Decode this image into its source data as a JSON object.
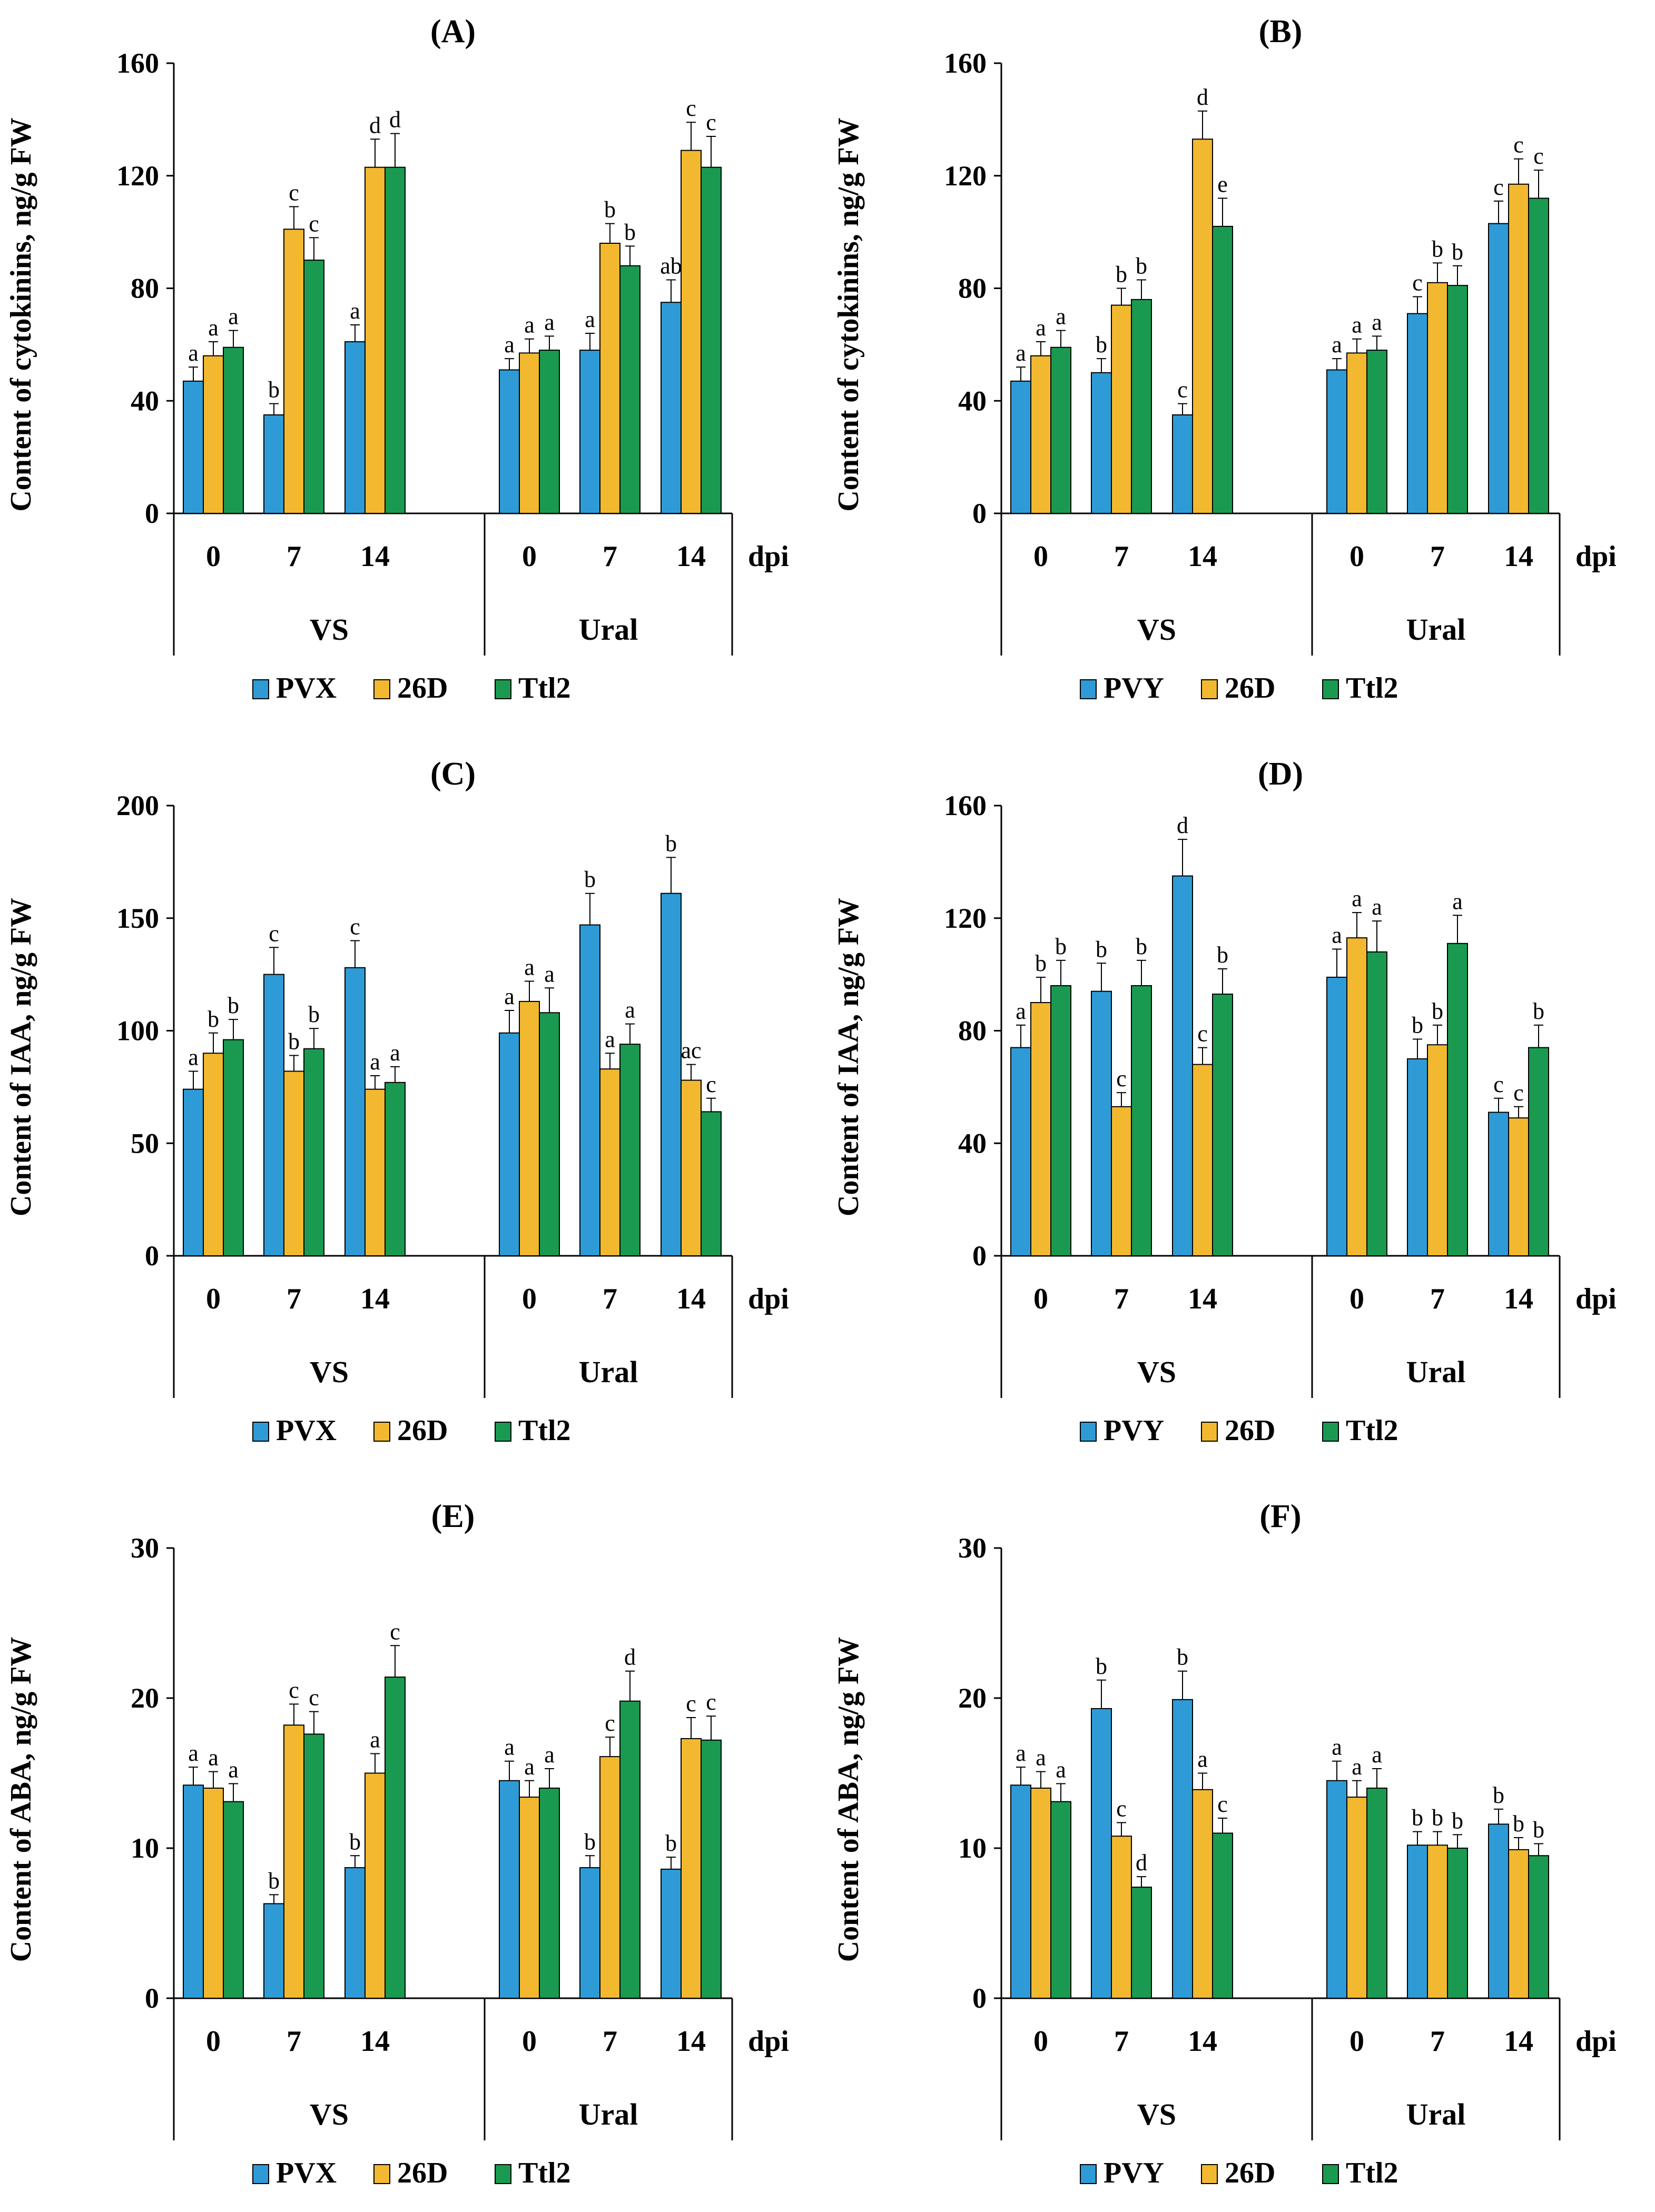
{
  "figure": {
    "xgroups": [
      {
        "label": "VS",
        "days": [
          "0",
          "7",
          "14"
        ]
      },
      {
        "label": "Ural",
        "days": [
          "0",
          "7",
          "14"
        ]
      }
    ],
    "x_unit": "dpi"
  },
  "chart_data": [
    {
      "panel": "(A)",
      "type": "bar",
      "ylabel": "Content of cytokinins,  ng/g FW",
      "ylim": [
        0,
        160
      ],
      "yticks": [
        0,
        40,
        80,
        120,
        160
      ],
      "categories": [
        "VS 0",
        "VS 7",
        "VS 14",
        "Ural 0",
        "Ural 7",
        "Ural 14"
      ],
      "series": [
        {
          "name": "PVX",
          "color": "#2e9bd6",
          "values": [
            47,
            35,
            61,
            51,
            58,
            75
          ],
          "errors": [
            5,
            4,
            6,
            4,
            6,
            8
          ],
          "letters": [
            "a",
            "b",
            "a",
            "a",
            "a",
            "ab"
          ]
        },
        {
          "name": "26D",
          "color": "#f2b830",
          "values": [
            56,
            101,
            123,
            57,
            96,
            129
          ],
          "errors": [
            5,
            8,
            10,
            5,
            7,
            10
          ],
          "letters": [
            "a",
            "c",
            "d",
            "a",
            "b",
            "c"
          ]
        },
        {
          "name": "Ttl2",
          "color": "#1a9a50",
          "values": [
            59,
            90,
            123,
            58,
            88,
            123
          ],
          "errors": [
            6,
            8,
            12,
            5,
            7,
            11
          ],
          "letters": [
            "a",
            "c",
            "d",
            "a",
            "b",
            "c"
          ]
        }
      ]
    },
    {
      "panel": "(B)",
      "type": "bar",
      "ylabel": "Content of cytokinins,  ng/g FW",
      "ylim": [
        0,
        160
      ],
      "yticks": [
        0,
        40,
        80,
        120,
        160
      ],
      "categories": [
        "VS 0",
        "VS 7",
        "VS 14",
        "Ural 0",
        "Ural 7",
        "Ural 14"
      ],
      "series": [
        {
          "name": "PVY",
          "color": "#2e9bd6",
          "values": [
            47,
            50,
            35,
            51,
            71,
            103
          ],
          "errors": [
            5,
            5,
            4,
            4,
            6,
            8
          ],
          "letters": [
            "a",
            "b",
            "c",
            "a",
            "c",
            "c"
          ]
        },
        {
          "name": "26D",
          "color": "#f2b830",
          "values": [
            56,
            74,
            133,
            57,
            82,
            117
          ],
          "errors": [
            5,
            6,
            10,
            5,
            7,
            9
          ],
          "letters": [
            "a",
            "b",
            "d",
            "a",
            "b",
            "c"
          ]
        },
        {
          "name": "Ttl2",
          "color": "#1a9a50",
          "values": [
            59,
            76,
            102,
            58,
            81,
            112
          ],
          "errors": [
            6,
            7,
            10,
            5,
            7,
            10
          ],
          "letters": [
            "a",
            "b",
            "e",
            "a",
            "b",
            "c"
          ]
        }
      ]
    },
    {
      "panel": "(C)",
      "type": "bar",
      "ylabel": "Content of IAA,  ng/g FW",
      "ylim": [
        0,
        200
      ],
      "yticks": [
        0,
        50,
        100,
        150,
        200
      ],
      "categories": [
        "VS 0",
        "VS 7",
        "VS 14",
        "Ural 0",
        "Ural 7",
        "Ural 14"
      ],
      "series": [
        {
          "name": "PVX",
          "color": "#2e9bd6",
          "values": [
            74,
            125,
            128,
            99,
            147,
            161
          ],
          "errors": [
            8,
            12,
            12,
            10,
            14,
            16
          ],
          "letters": [
            "a",
            "c",
            "c",
            "a",
            "b",
            "b"
          ]
        },
        {
          "name": "26D",
          "color": "#f2b830",
          "values": [
            90,
            82,
            74,
            113,
            83,
            78
          ],
          "errors": [
            9,
            7,
            6,
            9,
            7,
            7
          ],
          "letters": [
            "b",
            "b",
            "a",
            "a",
            "a",
            "ac"
          ]
        },
        {
          "name": "Ttl2",
          "color": "#1a9a50",
          "values": [
            96,
            92,
            77,
            108,
            94,
            64
          ],
          "errors": [
            9,
            9,
            7,
            11,
            9,
            6
          ],
          "letters": [
            "b",
            "b",
            "a",
            "a",
            "a",
            "c"
          ]
        }
      ]
    },
    {
      "panel": "(D)",
      "type": "bar",
      "ylabel": "Content of IAA,  ng/g FW",
      "ylim": [
        0,
        160
      ],
      "yticks": [
        0,
        40,
        80,
        120,
        160
      ],
      "categories": [
        "VS 0",
        "VS 7",
        "VS 14",
        "Ural 0",
        "Ural 7",
        "Ural 14"
      ],
      "series": [
        {
          "name": "PVY",
          "color": "#2e9bd6",
          "values": [
            74,
            94,
            135,
            99,
            70,
            51
          ],
          "errors": [
            8,
            10,
            13,
            10,
            7,
            5
          ],
          "letters": [
            "a",
            "b",
            "d",
            "a",
            "b",
            "c"
          ]
        },
        {
          "name": "26D",
          "color": "#f2b830",
          "values": [
            90,
            53,
            68,
            113,
            75,
            49
          ],
          "errors": [
            9,
            5,
            6,
            9,
            7,
            4
          ],
          "letters": [
            "b",
            "c",
            "c",
            "a",
            "b",
            "c"
          ]
        },
        {
          "name": "Ttl2",
          "color": "#1a9a50",
          "values": [
            96,
            96,
            93,
            108,
            111,
            74
          ],
          "errors": [
            9,
            9,
            9,
            11,
            10,
            8
          ],
          "letters": [
            "b",
            "b",
            "b",
            "a",
            "a",
            "b"
          ]
        }
      ]
    },
    {
      "panel": "(E)",
      "type": "bar",
      "ylabel": "Content of ABA,  ng/g FW",
      "ylim": [
        0,
        30
      ],
      "yticks": [
        0,
        10,
        20,
        30
      ],
      "categories": [
        "VS 0",
        "VS 7",
        "VS 14",
        "Ural 0",
        "Ural 7",
        "Ural 14"
      ],
      "series": [
        {
          "name": "PVX",
          "color": "#2e9bd6",
          "values": [
            14.2,
            6.3,
            8.7,
            14.5,
            8.7,
            8.6
          ],
          "errors": [
            1.2,
            0.6,
            0.8,
            1.3,
            0.8,
            0.8
          ],
          "letters": [
            "a",
            "b",
            "b",
            "a",
            "b",
            "b"
          ]
        },
        {
          "name": "26D",
          "color": "#f2b830",
          "values": [
            14.0,
            18.2,
            15.0,
            13.4,
            16.1,
            17.3
          ],
          "errors": [
            1.1,
            1.4,
            1.3,
            1.1,
            1.3,
            1.4
          ],
          "letters": [
            "a",
            "c",
            "a",
            "a",
            "c",
            "c"
          ]
        },
        {
          "name": "Ttl2",
          "color": "#1a9a50",
          "values": [
            13.1,
            17.6,
            21.4,
            14.0,
            19.8,
            17.2
          ],
          "errors": [
            1.2,
            1.5,
            2.1,
            1.3,
            2.0,
            1.6
          ],
          "letters": [
            "a",
            "c",
            "c",
            "a",
            "d",
            "c"
          ]
        }
      ]
    },
    {
      "panel": "(F)",
      "type": "bar",
      "ylabel": "Content of ABA,  ng/g FW",
      "ylim": [
        0,
        30
      ],
      "yticks": [
        0,
        10,
        20,
        30
      ],
      "categories": [
        "VS 0",
        "VS 7",
        "VS 14",
        "Ural 0",
        "Ural 7",
        "Ural 14"
      ],
      "series": [
        {
          "name": "PVY",
          "color": "#2e9bd6",
          "values": [
            14.2,
            19.3,
            19.9,
            14.5,
            10.2,
            11.6
          ],
          "errors": [
            1.2,
            1.9,
            1.9,
            1.3,
            0.9,
            1.0
          ],
          "letters": [
            "a",
            "b",
            "b",
            "a",
            "b",
            "b"
          ]
        },
        {
          "name": "26D",
          "color": "#f2b830",
          "values": [
            14.0,
            10.8,
            13.9,
            13.4,
            10.2,
            9.9
          ],
          "errors": [
            1.1,
            0.9,
            1.1,
            1.1,
            0.9,
            0.8
          ],
          "letters": [
            "a",
            "c",
            "a",
            "a",
            "b",
            "b"
          ]
        },
        {
          "name": "Ttl2",
          "color": "#1a9a50",
          "values": [
            13.1,
            7.4,
            11.0,
            14.0,
            10.0,
            9.5
          ],
          "errors": [
            1.2,
            0.7,
            1.0,
            1.3,
            0.9,
            0.8
          ],
          "letters": [
            "a",
            "d",
            "c",
            "a",
            "b",
            "b"
          ]
        }
      ]
    }
  ]
}
